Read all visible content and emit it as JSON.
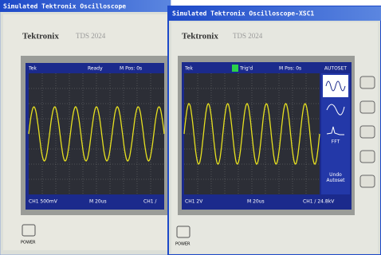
{
  "windows": [
    {
      "title": "Simulated Tektronix Oscilloscope",
      "brand": "Tektronix",
      "model": "TDS 2024",
      "status": {
        "left": "Tek",
        "state": "Ready",
        "mpos": "M Pos: 0s"
      },
      "bottom": {
        "ch": "CH1 500mV",
        "time": "M 20us",
        "trig": "CH1 /"
      },
      "power": "POWER"
    },
    {
      "title": "Simulated Tektronix Oscilloscope-XSC1",
      "brand": "Tektronix",
      "model": "TDS 2024",
      "status": {
        "left": "Tek",
        "state": "Trig'd",
        "mpos": "M Pos: 0s"
      },
      "menu": {
        "autoset": "AUTOSET",
        "fft": "FFT",
        "undo": "Undo Autoset"
      },
      "bottom": {
        "ch": "CH1 2V",
        "time": "M 20us",
        "trig": "CH1 / 24.8kV"
      },
      "power": "POWER"
    }
  ]
}
